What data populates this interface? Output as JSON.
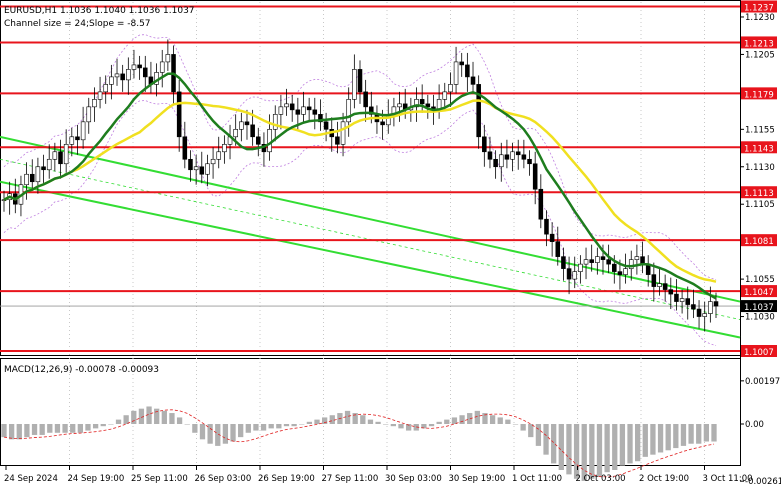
{
  "header": {
    "symbol_line": "EURUSD,H1  1.1036 1.1040 1.1036 1.1037",
    "channel_line": "Channel size = 24;Slope = -8.57"
  },
  "macd": {
    "label": "MACD(12,26,9) -0.00078 -0.00093",
    "axis_labels": [
      "0.00197",
      "0.00",
      "-0.00261"
    ]
  },
  "colors": {
    "level_line": "#e8141c",
    "price_tag_bg": "#e8141c",
    "current_tag_bg": "#000000",
    "ma_fast": "#1e7d1e",
    "ma_slow": "#f0e020",
    "channel": "#33dd33",
    "envelope": "#c080e0",
    "candles": "#000000",
    "macd_hist": "#b0b0b0",
    "macd_signal": "#e02020"
  },
  "chart_data": {
    "type": "candlestick",
    "title": "EURUSD,H1",
    "ylim": [
      1.1005,
      1.124
    ],
    "price_axis_labels": [
      "1.1230",
      "1.1205",
      "1.1180",
      "1.1155",
      "1.1130",
      "1.1105",
      "1.1080",
      "1.1055",
      "1.1030"
    ],
    "time_labels": [
      "24 Sep 2024",
      "24 Sep 19:00",
      "25 Sep 11:00",
      "26 Sep 03:00",
      "26 Sep 19:00",
      "27 Sep 11:00",
      "30 Sep 03:00",
      "30 Sep 19:00",
      "1 Oct 11:00",
      "2 Oct 03:00",
      "2 Oct 19:00",
      "3 Oct 11:00"
    ],
    "horizontal_levels": [
      1.1237,
      1.1213,
      1.1179,
      1.1143,
      1.1113,
      1.1081,
      1.1047,
      1.1007
    ],
    "current_price": 1.1037,
    "closes": [
      1.1108,
      1.1112,
      1.1105,
      1.1118,
      1.1125,
      1.112,
      1.113,
      1.1128,
      1.1135,
      1.114,
      1.1132,
      1.1145,
      1.115,
      1.1148,
      1.116,
      1.117,
      1.1175,
      1.118,
      1.1185,
      1.119,
      1.1192,
      1.1188,
      1.1195,
      1.1198,
      1.1196,
      1.119,
      1.1185,
      1.1193,
      1.12,
      1.1205,
      1.118,
      1.115,
      1.1135,
      1.1128,
      1.113,
      1.1125,
      1.1132,
      1.1135,
      1.114,
      1.1145,
      1.115,
      1.1155,
      1.116,
      1.1158,
      1.115,
      1.1145,
      1.114,
      1.1155,
      1.1165,
      1.117,
      1.1172,
      1.1168,
      1.1165,
      1.117,
      1.1168,
      1.1165,
      1.116,
      1.1155,
      1.115,
      1.1145,
      1.116,
      1.1175,
      1.1195,
      1.118,
      1.117,
      1.1165,
      1.116,
      1.1158,
      1.1165,
      1.117,
      1.1172,
      1.1168,
      1.117,
      1.1175,
      1.1172,
      1.117,
      1.1168,
      1.1175,
      1.118,
      1.1185,
      1.12,
      1.1198,
      1.119,
      1.1185,
      1.115,
      1.114,
      1.1135,
      1.113,
      1.1138,
      1.1135,
      1.114,
      1.1138,
      1.1135,
      1.1132,
      1.1115,
      1.1095,
      1.1085,
      1.108,
      1.107,
      1.1062,
      1.1055,
      1.106,
      1.1065,
      1.1068,
      1.1066,
      1.107,
      1.1068,
      1.1065,
      1.106,
      1.1058,
      1.1062,
      1.1068,
      1.107,
      1.1065,
      1.1058,
      1.105,
      1.1052,
      1.1048,
      1.1045,
      1.104,
      1.1042,
      1.1038,
      1.1035,
      1.103,
      1.1032,
      1.104,
      1.1037
    ],
    "ma_fast_label": "",
    "ma_slow_label": "",
    "macd_histogram": [
      -0.0006,
      -0.0007,
      -0.0007,
      -0.0006,
      -0.0005,
      -0.0005,
      -0.0004,
      -0.0004,
      -0.0004,
      -0.0004,
      -0.0004,
      -0.0003,
      -0.0002,
      -0.0001,
      0.0,
      0.0002,
      0.0004,
      0.0006,
      0.0007,
      0.0008,
      0.0007,
      0.0006,
      0.0005,
      0.0003,
      0.0,
      -0.0004,
      -0.0007,
      -0.0009,
      -0.001,
      -0.0009,
      -0.0008,
      -0.0006,
      -0.0004,
      -0.0003,
      -0.0003,
      -0.0002,
      -0.0002,
      -0.0001,
      -0.0001,
      0.0,
      0.0001,
      0.0002,
      0.0003,
      0.0004,
      0.0005,
      0.0006,
      0.0005,
      0.0004,
      0.0002,
      0.0001,
      0.0,
      -0.0001,
      -0.0002,
      -0.0003,
      -0.0003,
      -0.0002,
      -0.0001,
      0.0001,
      0.0002,
      0.0003,
      0.0004,
      0.0005,
      0.0006,
      0.0005,
      0.0004,
      0.0003,
      0.0002,
      0.0,
      -0.0003,
      -0.0006,
      -0.001,
      -0.0014,
      -0.0018,
      -0.0021,
      -0.0023,
      -0.0025,
      -0.0026,
      -0.0025,
      -0.0024,
      -0.0022,
      -0.0021,
      -0.0019,
      -0.0018,
      -0.0017,
      -0.0015,
      -0.0014,
      -0.0013,
      -0.0012,
      -0.0011,
      -0.001,
      -0.0009,
      -0.0009,
      -0.0008,
      -0.0008
    ]
  }
}
